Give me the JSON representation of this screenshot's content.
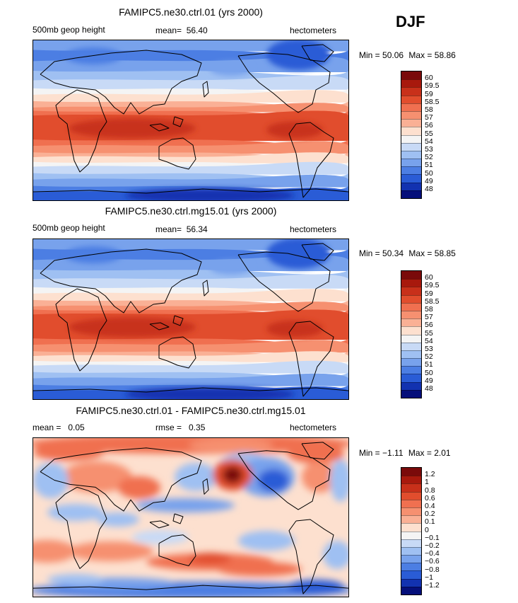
{
  "season": "DJF",
  "panels": [
    {
      "title": "FAMIPC5.ne30.ctrl.01 (yrs 2000)",
      "left_label": "500mb geop height",
      "mid_label": "mean=  56.40",
      "right_label": "hectometers",
      "min_label": "Min =",
      "min_value": "50.06",
      "max_label": "Max =",
      "max_value": "58.86",
      "kind": "abs"
    },
    {
      "title": "FAMIPC5.ne30.ctrl.mg15.01 (yrs 2000)",
      "left_label": "500mb geop height",
      "mid_label": "mean=  56.34",
      "right_label": "hectometers",
      "min_label": "Min =",
      "min_value": "50.34",
      "max_label": "Max =",
      "max_value": "58.85",
      "kind": "abs2"
    },
    {
      "title": "FAMIPC5.ne30.ctrl.01 - FAMIPC5.ne30.ctrl.mg15.01",
      "left_label": "mean =   0.05",
      "mid_label": "rmse =   0.35",
      "right_label": "hectometers",
      "min_label": "Min =",
      "min_value": "−1.11",
      "max_label": "Max =",
      "max_value": "2.01",
      "kind": "diff"
    }
  ],
  "colorbars": [
    {
      "levels": [
        "60",
        "59.5",
        "59",
        "58.5",
        "58",
        "57",
        "56",
        "55",
        "54",
        "53",
        "52",
        "51",
        "50",
        "49",
        "48"
      ],
      "colors": [
        "#7a0a0a",
        "#a8190d",
        "#c8301a",
        "#e14d2d",
        "#f07050",
        "#f69070",
        "#fab095",
        "#fde0cf",
        "#f4f4f4",
        "#c8daf6",
        "#9fc0f2",
        "#78a2ec",
        "#4c7ee3",
        "#2a5cd6",
        "#1232b0",
        "#050f7a"
      ]
    },
    {
      "levels": [
        "60",
        "59.5",
        "59",
        "58.5",
        "58",
        "57",
        "56",
        "55",
        "54",
        "53",
        "52",
        "51",
        "50",
        "49",
        "48"
      ],
      "colors": [
        "#7a0a0a",
        "#a8190d",
        "#c8301a",
        "#e14d2d",
        "#f07050",
        "#f69070",
        "#fab095",
        "#fde0cf",
        "#f4f4f4",
        "#c8daf6",
        "#9fc0f2",
        "#78a2ec",
        "#4c7ee3",
        "#2a5cd6",
        "#1232b0",
        "#050f7a"
      ]
    },
    {
      "levels": [
        "1.2",
        "1",
        "0.8",
        "0.6",
        "0.4",
        "0.2",
        "0.1",
        "0",
        "−0.1",
        "−0.2",
        "−0.4",
        "−0.6",
        "−0.8",
        "−1",
        "−1.2"
      ],
      "colors": [
        "#7a0a0a",
        "#a8190d",
        "#c8301a",
        "#e14d2d",
        "#f07050",
        "#f69070",
        "#fab095",
        "#fde0cf",
        "#f4f4f4",
        "#c8daf6",
        "#9fc0f2",
        "#78a2ec",
        "#4c7ee3",
        "#2a5cd6",
        "#1232b0",
        "#050f7a"
      ]
    }
  ],
  "chart_data": [
    {
      "type": "heatmap",
      "title": "FAMIPC5.ne30.ctrl.01 (yrs 2000)",
      "variable": "500mb geop height",
      "units": "hectometers",
      "mean": 56.4,
      "min": 50.06,
      "max": 58.86,
      "contour_levels": [
        48,
        49,
        50,
        51,
        52,
        53,
        54,
        55,
        56,
        57,
        58,
        58.5,
        59,
        59.5,
        60
      ],
      "projection": "global cylindrical equidistant, Pacific-centered"
    },
    {
      "type": "heatmap",
      "title": "FAMIPC5.ne30.ctrl.mg15.01 (yrs 2000)",
      "variable": "500mb geop height",
      "units": "hectometers",
      "mean": 56.34,
      "min": 50.34,
      "max": 58.85,
      "contour_levels": [
        48,
        49,
        50,
        51,
        52,
        53,
        54,
        55,
        56,
        57,
        58,
        58.5,
        59,
        59.5,
        60
      ],
      "projection": "global cylindrical equidistant, Pacific-centered"
    },
    {
      "type": "heatmap",
      "title": "FAMIPC5.ne30.ctrl.01 - FAMIPC5.ne30.ctrl.mg15.01",
      "units": "hectometers",
      "mean": 0.05,
      "rmse": 0.35,
      "min": -1.11,
      "max": 2.01,
      "contour_levels": [
        -1.2,
        -1,
        -0.8,
        -0.6,
        -0.4,
        -0.2,
        -0.1,
        0,
        0.1,
        0.2,
        0.4,
        0.6,
        0.8,
        1,
        1.2
      ],
      "projection": "global cylindrical equidistant, Pacific-centered"
    }
  ]
}
